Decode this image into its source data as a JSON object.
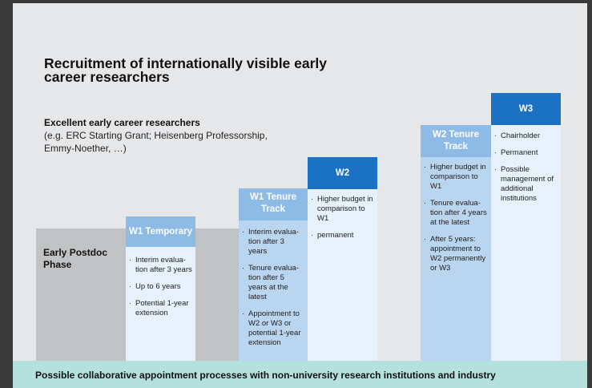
{
  "title": "Recruitment of internationally visible early career researchers",
  "subheading": "Excellent early career researchers",
  "subdescription": "(e.g. ERC Starting Grant; Heisenberg Professorship, Emmy-Noether, …)",
  "early_phase": "Early Postdoc Phase",
  "columns": [
    {
      "title": "W1 Temporary",
      "bullets": [
        "Interim evalua­tion after 3 years",
        "Up to 6 years",
        "Potential 1-year extension"
      ]
    },
    {
      "title": "W1 Tenure Track",
      "bullets": [
        "Interim evalua­tion after 3 years",
        "Tenure evalua­tion after 5 years at the latest",
        "Appointment to W2 or W3 or potential 1-year extension"
      ]
    },
    {
      "title": "W2",
      "bullets": [
        "Higher budget in comparison to W1",
        "permanent"
      ]
    },
    {
      "title": "W2 Tenure Track",
      "bullets": [
        "Higher budget in comparison to W1",
        "Tenure evalua­tion after 4 years at the latest",
        "After 5 years: appointment to W2 permanent­ly or W3"
      ]
    },
    {
      "title": "W3",
      "bullets": [
        "Chairholder",
        "Permanent",
        "Possible management of additional institutions"
      ]
    }
  ],
  "bullet_glyph": "·",
  "footer": "Possible collaborative appointment processes with non-university research institutions and industry",
  "colors": {
    "light_header": "#8ebbe6",
    "dark_header": "#1b71c3",
    "pale_body": "#e7f1fb",
    "gray": "#c1c2c4",
    "footer_bg": "#b4e0de"
  }
}
